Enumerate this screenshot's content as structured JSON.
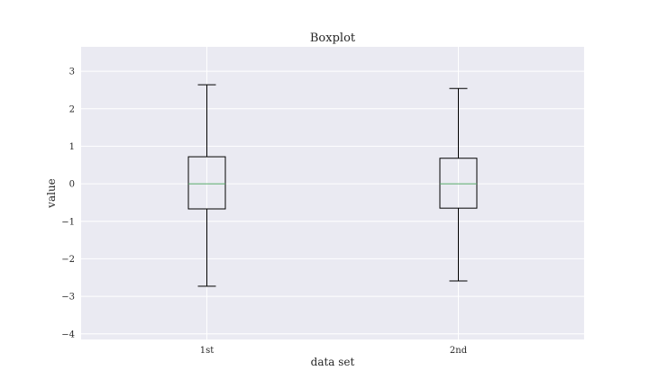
{
  "chart_data": {
    "type": "boxplot",
    "title": "Boxplot",
    "xlabel": "data set",
    "ylabel": "value",
    "categories": [
      "1st",
      "2nd"
    ],
    "boxes": [
      {
        "category": "1st",
        "whisker_low": -2.73,
        "q1": -0.67,
        "median": 0.0,
        "q3": 0.72,
        "whisker_high": 2.64
      },
      {
        "category": "2nd",
        "whisker_low": -2.59,
        "q1": -0.65,
        "median": 0.0,
        "q3": 0.68,
        "whisker_high": 2.54
      }
    ],
    "ylim": [
      -4.15,
      3.65
    ],
    "yticks": [
      -4,
      -3,
      -2,
      -1,
      0,
      1,
      2,
      3
    ],
    "ytick_labels": [
      "−4",
      "−3",
      "−2",
      "−1",
      "0",
      "1",
      "2",
      "3"
    ],
    "grid": true,
    "colors": {
      "background": "#eaeaf2",
      "grid": "#ffffff",
      "box": "#000000",
      "median": "#55a868",
      "text": "#262626"
    }
  }
}
